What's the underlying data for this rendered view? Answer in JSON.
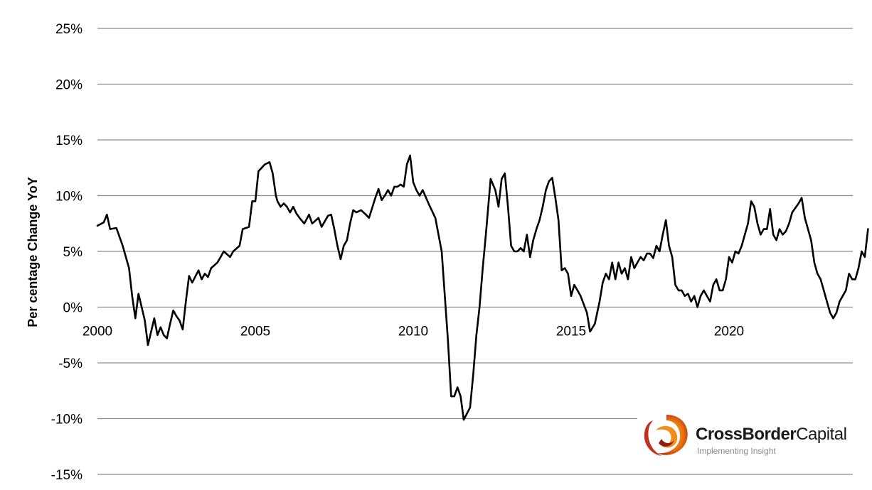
{
  "chart_data": {
    "type": "line",
    "title": "",
    "ylabel": "Per centage Change YoY",
    "xlabel": "",
    "ylim": [
      -15,
      25
    ],
    "xlim": [
      2000,
      2024.4
    ],
    "y_ticks": [
      25,
      20,
      15,
      10,
      5,
      0,
      -5,
      -10,
      -15
    ],
    "y_tick_labels": [
      "25%",
      "20%",
      "15%",
      "10%",
      "5%",
      "0%",
      "-5%",
      "-10%",
      "-15%"
    ],
    "x_ticks": [
      2000,
      2005,
      2010,
      2015,
      2020
    ],
    "x_tick_labels": [
      "2000",
      "2005",
      "2010",
      "2015",
      "2020"
    ],
    "grid": "horizontal",
    "series_colors": [
      "#000000",
      "#E8720C"
    ],
    "series": [
      {
        "name": "",
        "color": "#000000",
        "points": [
          [
            2000.0,
            7.3
          ],
          [
            2000.2,
            7.6
          ],
          [
            2000.3,
            8.3
          ],
          [
            2000.4,
            7.0
          ],
          [
            2000.6,
            7.1
          ],
          [
            2000.8,
            5.5
          ],
          [
            2001.0,
            3.5
          ],
          [
            2001.1,
            1.0
          ],
          [
            2001.2,
            -1.0
          ],
          [
            2001.3,
            1.2
          ],
          [
            2001.4,
            0.0
          ],
          [
            2001.5,
            -1.2
          ],
          [
            2001.6,
            -3.4
          ],
          [
            2001.8,
            -1.0
          ],
          [
            2001.9,
            -2.5
          ],
          [
            2002.0,
            -1.8
          ],
          [
            2002.1,
            -2.5
          ],
          [
            2002.2,
            -2.8
          ],
          [
            2002.3,
            -1.5
          ],
          [
            2002.4,
            -0.3
          ],
          [
            2002.5,
            -0.8
          ],
          [
            2002.6,
            -1.2
          ],
          [
            2002.7,
            -2.0
          ],
          [
            2002.8,
            0.5
          ],
          [
            2002.9,
            2.8
          ],
          [
            2003.0,
            2.2
          ],
          [
            2003.2,
            3.3
          ],
          [
            2003.3,
            2.5
          ],
          [
            2003.4,
            3.0
          ],
          [
            2003.5,
            2.7
          ],
          [
            2003.6,
            3.5
          ],
          [
            2003.8,
            4.0
          ],
          [
            2003.9,
            4.5
          ],
          [
            2004.0,
            5.0
          ],
          [
            2004.2,
            4.5
          ],
          [
            2004.3,
            5.0
          ],
          [
            2004.5,
            5.5
          ],
          [
            2004.6,
            7.0
          ],
          [
            2004.8,
            7.2
          ],
          [
            2004.9,
            9.5
          ],
          [
            2005.0,
            9.5
          ],
          [
            2005.1,
            12.2
          ],
          [
            2005.2,
            12.5
          ],
          [
            2005.3,
            12.8
          ],
          [
            2005.45,
            13.0
          ],
          [
            2005.55,
            12.0
          ],
          [
            2005.65,
            10.0
          ],
          [
            2005.7,
            9.5
          ],
          [
            2005.8,
            9.0
          ],
          [
            2005.9,
            9.3
          ],
          [
            2006.0,
            9.0
          ],
          [
            2006.1,
            8.5
          ],
          [
            2006.2,
            9.0
          ],
          [
            2006.3,
            8.4
          ],
          [
            2006.4,
            8.0
          ],
          [
            2006.55,
            7.5
          ],
          [
            2006.7,
            8.3
          ],
          [
            2006.8,
            7.5
          ],
          [
            2007.0,
            8.0
          ],
          [
            2007.1,
            7.2
          ],
          [
            2007.3,
            8.2
          ],
          [
            2007.4,
            8.3
          ],
          [
            2007.5,
            7.0
          ],
          [
            2007.6,
            5.5
          ],
          [
            2007.7,
            4.3
          ],
          [
            2007.8,
            5.5
          ],
          [
            2007.9,
            6.0
          ],
          [
            2008.0,
            7.5
          ],
          [
            2008.1,
            8.7
          ],
          [
            2008.2,
            8.5
          ],
          [
            2008.35,
            8.7
          ],
          [
            2008.5,
            8.3
          ],
          [
            2008.6,
            8.0
          ],
          [
            2008.8,
            9.8
          ],
          [
            2008.9,
            10.6
          ],
          [
            2009.0,
            9.6
          ],
          [
            2009.1,
            10.0
          ],
          [
            2009.2,
            10.5
          ],
          [
            2009.3,
            10.0
          ],
          [
            2009.4,
            10.8
          ],
          [
            2009.5,
            10.8
          ],
          [
            2009.6,
            11.0
          ],
          [
            2009.7,
            10.8
          ],
          [
            2009.8,
            12.8
          ],
          [
            2009.9,
            13.6
          ],
          [
            2010.0,
            11.2
          ],
          [
            2010.1,
            10.5
          ],
          [
            2010.2,
            10.0
          ],
          [
            2010.3,
            10.5
          ],
          [
            2010.5,
            9.2
          ],
          [
            2010.7,
            8.0
          ],
          [
            2010.8,
            6.5
          ],
          [
            2010.9,
            5.0
          ],
          [
            2011.0,
            1.0
          ],
          [
            2011.1,
            -3.0
          ],
          [
            2011.2,
            -8.0
          ],
          [
            2011.3,
            -8.0
          ],
          [
            2011.4,
            -7.2
          ],
          [
            2011.5,
            -8.0
          ],
          [
            2011.6,
            -10.1
          ],
          [
            2011.8,
            -9.0
          ],
          [
            2011.9,
            -6.0
          ],
          [
            2012.0,
            -2.5
          ],
          [
            2012.1,
            0.0
          ],
          [
            2012.2,
            3.5
          ],
          [
            2012.3,
            6.5
          ],
          [
            2012.45,
            11.5
          ],
          [
            2012.6,
            10.5
          ],
          [
            2012.7,
            9.0
          ],
          [
            2012.8,
            11.5
          ],
          [
            2012.9,
            12.0
          ],
          [
            2013.0,
            9.0
          ],
          [
            2013.1,
            5.5
          ],
          [
            2013.2,
            5.0
          ],
          [
            2013.3,
            5.0
          ],
          [
            2013.4,
            5.3
          ],
          [
            2013.5,
            5.0
          ],
          [
            2013.6,
            6.5
          ],
          [
            2013.7,
            4.5
          ],
          [
            2013.8,
            6.0
          ],
          [
            2013.9,
            7.0
          ],
          [
            2014.0,
            7.8
          ],
          [
            2014.1,
            9.0
          ],
          [
            2014.2,
            10.5
          ],
          [
            2014.3,
            11.3
          ],
          [
            2014.4,
            11.6
          ],
          [
            2014.5,
            9.8
          ],
          [
            2014.6,
            7.8
          ],
          [
            2014.7,
            3.3
          ],
          [
            2014.8,
            3.5
          ],
          [
            2014.9,
            3.0
          ],
          [
            2015.0,
            1.0
          ],
          [
            2015.1,
            2.0
          ],
          [
            2015.2,
            1.5
          ],
          [
            2015.3,
            1.0
          ],
          [
            2015.5,
            -0.5
          ],
          [
            2015.6,
            -2.2
          ],
          [
            2015.75,
            -1.5
          ],
          [
            2015.9,
            0.5
          ],
          [
            2016.0,
            2.2
          ],
          [
            2016.1,
            3.0
          ],
          [
            2016.2,
            2.5
          ],
          [
            2016.3,
            4.0
          ],
          [
            2016.4,
            2.5
          ],
          [
            2016.5,
            4.0
          ],
          [
            2016.6,
            3.0
          ],
          [
            2016.7,
            3.5
          ],
          [
            2016.8,
            2.5
          ],
          [
            2016.9,
            4.5
          ],
          [
            2017.0,
            3.5
          ],
          [
            2017.1,
            4.0
          ],
          [
            2017.2,
            4.5
          ],
          [
            2017.3,
            4.2
          ],
          [
            2017.4,
            4.8
          ],
          [
            2017.5,
            4.8
          ],
          [
            2017.6,
            4.4
          ],
          [
            2017.7,
            5.5
          ],
          [
            2017.8,
            5.0
          ],
          [
            2017.9,
            6.5
          ],
          [
            2018.0,
            7.8
          ],
          [
            2018.1,
            5.5
          ],
          [
            2018.2,
            4.5
          ],
          [
            2018.3,
            2.0
          ],
          [
            2018.4,
            1.5
          ],
          [
            2018.5,
            1.5
          ],
          [
            2018.6,
            1.0
          ],
          [
            2018.7,
            1.2
          ],
          [
            2018.8,
            0.5
          ],
          [
            2018.9,
            1.0
          ],
          [
            2019.0,
            0.0
          ],
          [
            2019.1,
            1.0
          ],
          [
            2019.2,
            1.5
          ],
          [
            2019.3,
            1.0
          ],
          [
            2019.4,
            0.5
          ],
          [
            2019.5,
            2.0
          ],
          [
            2019.6,
            2.5
          ],
          [
            2019.7,
            1.5
          ],
          [
            2019.8,
            1.5
          ],
          [
            2019.9,
            2.5
          ],
          [
            2020.0,
            4.5
          ],
          [
            2020.1,
            4.0
          ],
          [
            2020.2,
            5.0
          ],
          [
            2020.3,
            4.8
          ],
          [
            2020.4,
            5.5
          ],
          [
            2020.5,
            6.5
          ],
          [
            2020.6,
            7.5
          ],
          [
            2020.7,
            9.5
          ],
          [
            2020.8,
            9.0
          ],
          [
            2020.9,
            7.5
          ],
          [
            2021.0,
            6.5
          ],
          [
            2021.1,
            7.0
          ],
          [
            2021.2,
            7.0
          ],
          [
            2021.3,
            8.8
          ],
          [
            2021.4,
            6.5
          ],
          [
            2021.5,
            6.0
          ],
          [
            2021.6,
            7.0
          ],
          [
            2021.7,
            6.5
          ],
          [
            2021.8,
            6.8
          ],
          [
            2021.9,
            7.5
          ],
          [
            2022.0,
            8.5
          ],
          [
            2022.2,
            9.3
          ],
          [
            2022.3,
            9.8
          ],
          [
            2022.4,
            8.0
          ],
          [
            2022.6,
            6.0
          ],
          [
            2022.7,
            4.0
          ],
          [
            2022.8,
            3.0
          ],
          [
            2022.9,
            2.5
          ],
          [
            2023.0,
            1.5
          ],
          [
            2023.1,
            0.5
          ],
          [
            2023.2,
            -0.5
          ],
          [
            2023.3,
            -1.0
          ],
          [
            2023.4,
            -0.5
          ],
          [
            2023.5,
            0.5
          ],
          [
            2023.6,
            1.0
          ],
          [
            2023.7,
            1.5
          ],
          [
            2023.8,
            3.0
          ],
          [
            2023.9,
            2.5
          ],
          [
            2024.0,
            2.5
          ],
          [
            2024.1,
            3.5
          ],
          [
            2024.2,
            5.0
          ],
          [
            2024.3,
            4.5
          ],
          [
            2024.4,
            7.0
          ]
        ]
      },
      {
        "name": "",
        "color": "#E8720C",
        "points": [],
        "projection_dashed": true
      }
    ]
  },
  "logo": {
    "name_bold": "CrossBorder",
    "name_regular": "Capital",
    "tagline": "Implementing Insight"
  }
}
